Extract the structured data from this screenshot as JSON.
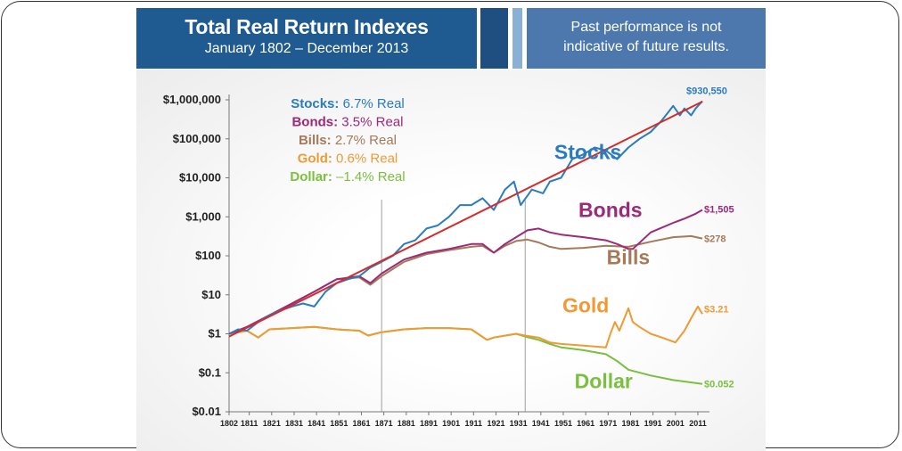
{
  "header": {
    "title": "Total Real Return Indexes",
    "subtitle": "January 1802 – December 2013",
    "disclaimer": "Past performance is not\nindicative of future results."
  },
  "colors": {
    "banner_dark": "#1f5a91",
    "banner_light": "#4d78ad",
    "stocks": "#2a7bbf",
    "bonds": "#9c2a79",
    "bills": "#a47a5a",
    "gold": "#ef9a34",
    "dollar": "#7bbf3f",
    "trend": "#d62b2b"
  },
  "chart_data": {
    "type": "line",
    "scale": "log",
    "ylim": [
      0.01,
      1000000
    ],
    "yticks": [
      "$1,000,000",
      "$100,000",
      "$10,000",
      "$1,000",
      "$100",
      "$10",
      "$1",
      "$0.1",
      "$0.01"
    ],
    "ytick_values": [
      1000000,
      100000,
      10000,
      1000,
      100,
      10,
      1,
      0.1,
      0.01
    ],
    "xlim": [
      1802,
      2013
    ],
    "xticks": [
      "1802",
      "1811",
      "1821",
      "1831",
      "1841",
      "1851",
      "1861",
      "1871",
      "1881",
      "1891",
      "1901",
      "1911",
      "1921",
      "1931",
      "1941",
      "1951",
      "1961",
      "1971",
      "1981",
      "1991",
      "2001",
      "2011"
    ],
    "xtick_values": [
      1802,
      1811,
      1821,
      1831,
      1841,
      1851,
      1861,
      1871,
      1881,
      1891,
      1901,
      1911,
      1921,
      1931,
      1941,
      1951,
      1961,
      1971,
      1981,
      1991,
      2001,
      2011
    ],
    "vlines": [
      1870,
      1934
    ],
    "legend": [
      {
        "name": "Stocks:",
        "value": "6.7% Real",
        "color": "#2a7bbf"
      },
      {
        "name": "Bonds:",
        "value": "3.5% Real",
        "color": "#9c2a79"
      },
      {
        "name": "Bills:",
        "value": "2.7% Real",
        "color": "#a47a5a"
      },
      {
        "name": "Gold:",
        "value": "0.6% Real",
        "color": "#ef9a34"
      },
      {
        "name": "Dollar:",
        "value": "–1.4% Real",
        "color": "#7bbf3f"
      }
    ],
    "series": [
      {
        "name": "Stocks",
        "color": "#2a7bbf",
        "end_label": "$930,550",
        "x": [
          1802,
          1806,
          1810,
          1815,
          1820,
          1825,
          1830,
          1835,
          1840,
          1845,
          1850,
          1855,
          1860,
          1865,
          1870,
          1875,
          1880,
          1885,
          1890,
          1895,
          1900,
          1905,
          1910,
          1915,
          1920,
          1925,
          1929,
          1932,
          1937,
          1942,
          1945,
          1950,
          1955,
          1960,
          1965,
          1970,
          1975,
          1980,
          1985,
          1990,
          1995,
          2000,
          2003,
          2005,
          2008,
          2010,
          2013
        ],
        "y": [
          1,
          1.3,
          1.2,
          2,
          3,
          4,
          5,
          6,
          5,
          12,
          20,
          25,
          30,
          50,
          70,
          100,
          200,
          250,
          500,
          600,
          1000,
          2000,
          2000,
          3000,
          1500,
          5000,
          8000,
          2000,
          5000,
          4000,
          8000,
          10000,
          30000,
          40000,
          60000,
          50000,
          30000,
          60000,
          100000,
          150000,
          300000,
          700000,
          400000,
          600000,
          400000,
          600000,
          930550
        ]
      },
      {
        "name": "Bonds",
        "color": "#9c2a79",
        "end_label": "$1,505",
        "x": [
          1802,
          1810,
          1820,
          1830,
          1840,
          1850,
          1860,
          1865,
          1870,
          1880,
          1890,
          1900,
          1910,
          1915,
          1920,
          1925,
          1930,
          1935,
          1940,
          1945,
          1950,
          1960,
          1970,
          1975,
          1980,
          1982,
          1990,
          2000,
          2005,
          2010,
          2013
        ],
        "y": [
          1,
          1.5,
          3,
          6,
          12,
          25,
          30,
          20,
          35,
          80,
          120,
          150,
          200,
          200,
          120,
          200,
          300,
          450,
          500,
          400,
          350,
          300,
          250,
          200,
          150,
          150,
          400,
          700,
          900,
          1200,
          1505
        ]
      },
      {
        "name": "Bills",
        "color": "#a47a5a",
        "end_label": "$278",
        "x": [
          1802,
          1810,
          1820,
          1830,
          1840,
          1850,
          1860,
          1865,
          1870,
          1880,
          1890,
          1900,
          1910,
          1915,
          1920,
          1925,
          1930,
          1935,
          1940,
          1945,
          1950,
          1960,
          1970,
          1980,
          1990,
          2000,
          2008,
          2013
        ],
        "y": [
          1,
          1.5,
          3,
          6,
          12,
          25,
          28,
          18,
          30,
          70,
          110,
          140,
          170,
          180,
          120,
          180,
          240,
          260,
          220,
          170,
          150,
          160,
          180,
          170,
          230,
          300,
          320,
          278
        ]
      },
      {
        "name": "Gold",
        "color": "#ef9a34",
        "end_label": "$3.21",
        "x": [
          1802,
          1810,
          1815,
          1820,
          1830,
          1840,
          1850,
          1860,
          1864,
          1870,
          1880,
          1890,
          1900,
          1910,
          1917,
          1920,
          1930,
          1934,
          1940,
          1945,
          1950,
          1960,
          1970,
          1972,
          1974,
          1976,
          1980,
          1982,
          1985,
          1990,
          1995,
          2001,
          2005,
          2008,
          2011,
          2013
        ],
        "y": [
          1,
          1.2,
          0.8,
          1.3,
          1.4,
          1.5,
          1.3,
          1.2,
          0.9,
          1.1,
          1.3,
          1.4,
          1.4,
          1.3,
          0.7,
          0.8,
          1,
          0.9,
          0.8,
          0.6,
          0.55,
          0.5,
          0.45,
          1,
          2,
          1.2,
          4.5,
          2,
          1.5,
          1,
          0.8,
          0.6,
          1.2,
          2.5,
          5,
          3.21
        ]
      },
      {
        "name": "Dollar",
        "color": "#7bbf3f",
        "end_label": "$0.052",
        "x": [
          1802,
          1810,
          1815,
          1820,
          1830,
          1840,
          1850,
          1860,
          1864,
          1870,
          1880,
          1890,
          1900,
          1910,
          1917,
          1920,
          1930,
          1934,
          1940,
          1945,
          1950,
          1960,
          1970,
          1975,
          1980,
          1990,
          2000,
          2013
        ],
        "y": [
          1,
          1.2,
          0.8,
          1.3,
          1.4,
          1.5,
          1.3,
          1.2,
          0.9,
          1.1,
          1.3,
          1.4,
          1.4,
          1.3,
          0.7,
          0.8,
          1,
          0.85,
          0.7,
          0.55,
          0.45,
          0.38,
          0.3,
          0.2,
          0.12,
          0.085,
          0.065,
          0.052
        ]
      }
    ],
    "trend": {
      "name": "Trend",
      "color": "#d62b2b",
      "x": [
        1802,
        2013
      ],
      "y": [
        0.85,
        900000
      ]
    },
    "annotations": [
      {
        "text": "Stocks",
        "series": "Stocks"
      },
      {
        "text": "Bonds",
        "series": "Bonds"
      },
      {
        "text": "Bills",
        "series": "Bills"
      },
      {
        "text": "Gold",
        "series": "Gold"
      },
      {
        "text": "Dollar",
        "series": "Dollar"
      }
    ]
  }
}
